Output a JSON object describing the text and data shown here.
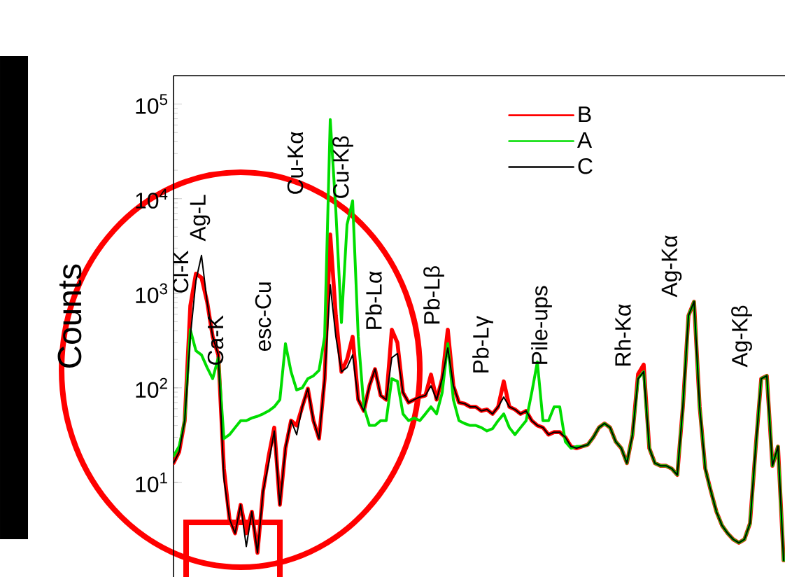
{
  "chart_data": {
    "type": "line",
    "ylabel": "Counts",
    "log": "y",
    "legend": "top right",
    "tick_labels": "y",
    "ylim": [
      1,
      200000
    ],
    "yticks": [
      {
        "value": 10,
        "label": "10$^{1}$"
      },
      {
        "value": 100,
        "label": "10$^{2}$"
      },
      {
        "value": 1000,
        "label": "10$^{3}$"
      },
      {
        "value": 10000,
        "label": "10$^{4}$"
      },
      {
        "value": 100000,
        "label": "10$^{5}$"
      }
    ],
    "categories": [
      null,
      null,
      null,
      null,
      null,
      null,
      null,
      null,
      null,
      null,
      null,
      null,
      null,
      null,
      null,
      null,
      null,
      null,
      null,
      null,
      null,
      null,
      null,
      null,
      null,
      null,
      null,
      null,
      null,
      null,
      null,
      null,
      null,
      null,
      null,
      null,
      null,
      null,
      null,
      null,
      null,
      null,
      null,
      null,
      null,
      null,
      null,
      null,
      null,
      null,
      null,
      null,
      null,
      null,
      null,
      null,
      null,
      null,
      null,
      null,
      null,
      null,
      null,
      null,
      null,
      null,
      null,
      null,
      null,
      null,
      null,
      null,
      null,
      null,
      null,
      null,
      null,
      null,
      null,
      null,
      null,
      null,
      null,
      null,
      null,
      null,
      null,
      null,
      null,
      null,
      null,
      null,
      null,
      null,
      null,
      null,
      null,
      null,
      null,
      null,
      null,
      null,
      null,
      null,
      null,
      null,
      null,
      null,
      null,
      null
    ],
    "series": [
      {
        "name": "B",
        "color": "#ff0000",
        "values": [
          16,
          21,
          45,
          736,
          1610,
          1460,
          815,
          347,
          223,
          14,
          4.1,
          2.9,
          5.8,
          2.9,
          4.9,
          1.8,
          8.1,
          19,
          38,
          5.8,
          23,
          45,
          40,
          63,
          98,
          45,
          29,
          125,
          4190,
          579,
          148,
          200,
          347,
          75,
          57,
          105,
          158,
          83,
          75,
          412,
          300,
          89,
          70,
          75,
          80,
          83,
          138,
          75,
          125,
          412,
          105,
          70,
          68,
          63,
          63,
          57,
          59,
          53,
          63,
          117,
          63,
          59,
          53,
          57,
          45,
          40,
          38,
          32,
          34,
          34,
          30,
          24,
          23,
          24,
          25,
          30,
          38,
          42,
          38,
          27,
          23,
          16,
          32,
          140,
          176,
          23,
          16,
          15,
          15,
          14,
          12,
          63,
          579,
          815,
          63,
          14,
          8.1,
          4.9,
          3.5,
          2.9,
          2.5,
          2.3,
          2.5,
          3.7,
          23,
          125,
          134,
          15,
          24,
          1.5
        ]
      },
      {
        "name": "A",
        "color": "#00dd00",
        "values": [
          19,
          24,
          45,
          412,
          247,
          223,
          164,
          125,
          208,
          29,
          32,
          38,
          45,
          45,
          48,
          50,
          53,
          57,
          63,
          75,
          293,
          148,
          95,
          100,
          125,
          134,
          153,
          347,
          68700,
          7480,
          489,
          5320,
          9500,
          347,
          63,
          40,
          40,
          45,
          45,
          125,
          117,
          53,
          45,
          48,
          45,
          53,
          63,
          53,
          89,
          293,
          75,
          45,
          42,
          40,
          40,
          38,
          35,
          37,
          45,
          53,
          38,
          32,
          38,
          45,
          89,
          188,
          45,
          45,
          63,
          63,
          27,
          23,
          24,
          24,
          25,
          30,
          38,
          42,
          38,
          27,
          23,
          16,
          32,
          125,
          148,
          23,
          16,
          15,
          15,
          14,
          12,
          63,
          579,
          815,
          63,
          14,
          8.1,
          4.9,
          3.5,
          2.9,
          2.5,
          2.3,
          2.5,
          3.7,
          23,
          125,
          134,
          15,
          24,
          1.5
        ]
      },
      {
        "name": "C",
        "color": "#000000",
        "values": [
          16,
          21,
          45,
          347,
          1360,
          2510,
          815,
          347,
          223,
          11,
          4.1,
          2.9,
          5.8,
          2.1,
          4.9,
          1.8,
          8.1,
          16,
          35,
          5.8,
          23,
          45,
          32,
          63,
          98,
          45,
          29,
          125,
          1230,
          347,
          148,
          164,
          223,
          75,
          57,
          105,
          158,
          83,
          75,
          208,
          231,
          89,
          70,
          75,
          80,
          83,
          105,
          75,
          125,
          264,
          105,
          70,
          68,
          63,
          63,
          57,
          59,
          53,
          63,
          80,
          63,
          59,
          53,
          57,
          45,
          40,
          38,
          32,
          34,
          34,
          30,
          24,
          23,
          24,
          25,
          30,
          38,
          42,
          38,
          27,
          23,
          16,
          32,
          125,
          148,
          23,
          16,
          15,
          15,
          14,
          12,
          63,
          579,
          815,
          63,
          14,
          8.1,
          4.9,
          3.5,
          2.9,
          2.5,
          2.3,
          2.5,
          3.7,
          23,
          125,
          134,
          15,
          24,
          1.5
        ]
      }
    ],
    "annotations": [
      "Cl-K",
      "Ag-L",
      "Ca-K",
      "esc-Cu",
      "Cu-Kα",
      "Cu-Kβ",
      "Pb-Lα",
      "Pb-Lβ",
      "Pb-Lγ",
      "Pile-ups",
      "Rh-Kα",
      "Ag-Kα",
      "Ag-Kβ"
    ]
  }
}
